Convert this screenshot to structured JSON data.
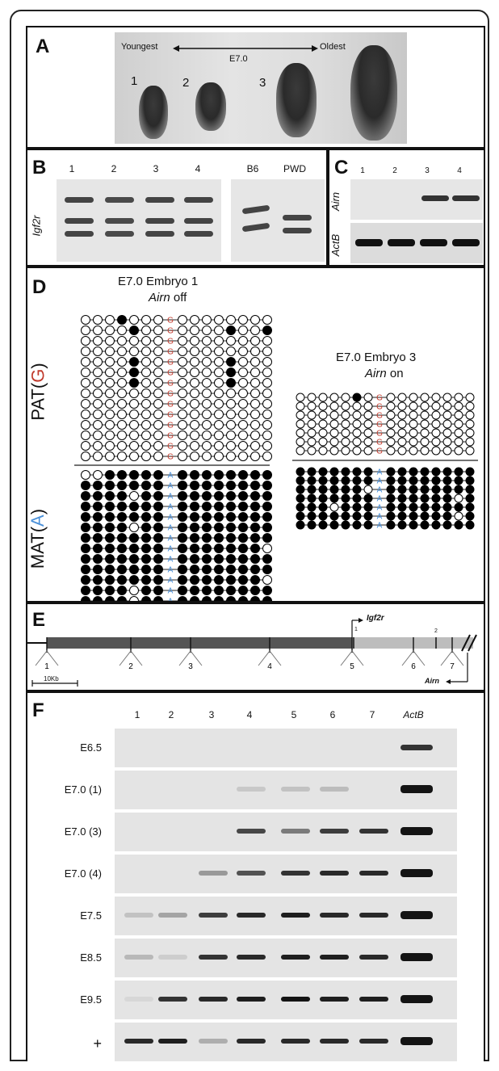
{
  "panels": {
    "a": {
      "letter": "A",
      "youngest": "Youngest",
      "oldest": "Oldest",
      "stage": "E7.0",
      "embryo_labels": [
        "1",
        "2",
        "3"
      ]
    },
    "b": {
      "letter": "B",
      "lanes": [
        "1",
        "2",
        "3",
        "4"
      ],
      "controls": [
        "B6",
        "PWD"
      ],
      "gene": "Igf2r"
    },
    "c": {
      "letter": "C",
      "lanes": [
        "1",
        "2",
        "3",
        "4"
      ],
      "rows": [
        "Airn",
        "ActB"
      ]
    },
    "d": {
      "letter": "D",
      "left_title_1": "E7.0 Embryo 1",
      "left_title_2_gene": "Airn",
      "left_title_2_rest": " off",
      "right_title_1": "E7.0 Embryo 3",
      "right_title_2_gene": "Airn",
      "right_title_2_rest": " on",
      "pat_prefix": "PAT(",
      "pat_allele": "G",
      "mat_prefix": "MAT(",
      "mat_allele": "A",
      "close_paren": ")",
      "pat_color": "#c0392b",
      "mat_color": "#4a90d9"
    },
    "e": {
      "letter": "E",
      "gene_label": "Igf2r",
      "airn_label": "Airn",
      "exon_labels": [
        "1",
        "2"
      ],
      "amplicons": [
        "1",
        "2",
        "3",
        "4",
        "5",
        "6",
        "7"
      ],
      "scale_label": "10Kb"
    },
    "f": {
      "letter": "F",
      "lanes": [
        "1",
        "2",
        "3",
        "4",
        "5",
        "6",
        "7",
        "ActB"
      ],
      "rows": [
        "E6.5",
        "E7.0 (1)",
        "E7.0 (3)",
        "E7.0 (4)",
        "E7.5",
        "E8.5",
        "E9.5",
        "+"
      ],
      "intensity": [
        [
          0,
          0,
          0,
          0,
          0,
          0,
          0,
          0.85
        ],
        [
          0,
          0,
          0,
          0.12,
          0.15,
          0.18,
          0,
          1
        ],
        [
          0,
          0,
          0,
          0.75,
          0.5,
          0.8,
          0.85,
          1
        ],
        [
          0,
          0,
          0.35,
          0.7,
          0.85,
          0.9,
          0.9,
          1
        ],
        [
          0.15,
          0.3,
          0.8,
          0.9,
          0.95,
          0.9,
          0.9,
          1
        ],
        [
          0.2,
          0.1,
          0.85,
          0.9,
          0.95,
          0.95,
          0.9,
          1
        ],
        [
          0.05,
          0.85,
          0.9,
          0.95,
          1,
          0.95,
          0.95,
          1
        ],
        [
          0.9,
          0.95,
          0.25,
          0.9,
          0.9,
          0.9,
          0.9,
          1
        ]
      ]
    }
  }
}
